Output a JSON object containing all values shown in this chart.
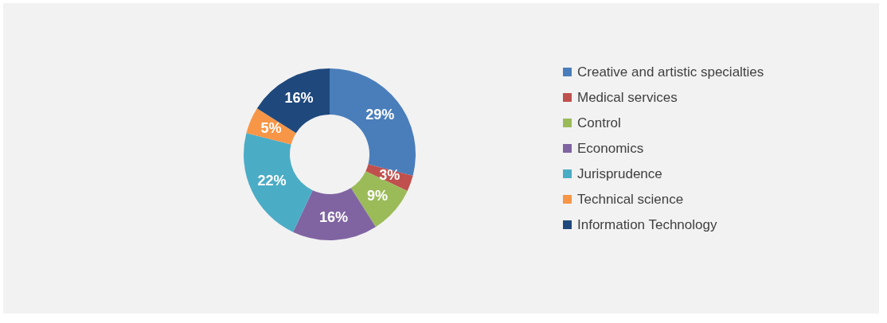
{
  "chart_data": {
    "type": "donut",
    "categories": [
      "Creative and artistic specialties",
      "Medical services",
      "Control",
      "Economics",
      "Jurisprudence",
      "Technical science",
      "Information Technology"
    ],
    "values": [
      29,
      3,
      9,
      16,
      22,
      5,
      16
    ],
    "colors": [
      "#4a7ebb",
      "#c0504d",
      "#9bbb59",
      "#8064a2",
      "#4bacc6",
      "#f79646",
      "#1f497d"
    ],
    "value_labels": [
      "29%",
      "3%",
      "9%",
      "16%",
      "22%",
      "5%",
      "16%"
    ],
    "legend": "right"
  }
}
